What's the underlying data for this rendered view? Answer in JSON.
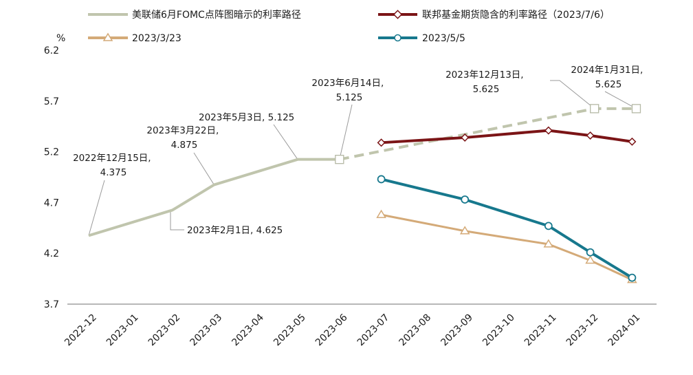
{
  "chart_data": {
    "type": "line",
    "ylabel": "%",
    "ylim": [
      3.7,
      6.2
    ],
    "yticks": [
      "6.2",
      "5.7",
      "5.2",
      "4.7",
      "4.2",
      "3.7"
    ],
    "categories": [
      "2022-12",
      "2023-01",
      "2023-02",
      "2023-03",
      "2023-04",
      "2023-05",
      "2023-06",
      "2023-07",
      "2023-08",
      "2023-09",
      "2023-10",
      "2023-11",
      "2023-12",
      "2024-01"
    ],
    "legend_position": "top",
    "series": [
      {
        "name": "美联储6月FOMC点阵图暗示的利率路径",
        "color": "#c0c5ad",
        "style": "solid",
        "points": [
          [
            0,
            4.375
          ],
          [
            2,
            4.625
          ],
          [
            3,
            4.875
          ],
          [
            5,
            5.125
          ],
          [
            6,
            5.125
          ]
        ]
      },
      {
        "name": "美联储6月FOMC点阵图暗示的利率路径",
        "color": "#c0c5ad",
        "style": "dashed",
        "marker": "square",
        "points": [
          [
            6,
            5.125
          ],
          [
            12.1,
            5.625
          ],
          [
            13.1,
            5.625
          ]
        ]
      },
      {
        "name": "联邦基金期货隐含的利率路径（2023/7/6）",
        "color": "#7b1416",
        "style": "solid",
        "marker": "diamond",
        "points": [
          [
            7,
            5.29
          ],
          [
            9,
            5.34
          ],
          [
            11,
            5.41
          ],
          [
            12,
            5.36
          ],
          [
            13,
            5.3
          ]
        ]
      },
      {
        "name": "2023/3/23",
        "color": "#d4aa78",
        "style": "solid",
        "marker": "triangle",
        "points": [
          [
            7,
            4.58
          ],
          [
            9,
            4.42
          ],
          [
            11,
            4.29
          ],
          [
            12,
            4.13
          ],
          [
            13,
            3.94
          ]
        ]
      },
      {
        "name": "2023/5/5",
        "color": "#17788d",
        "style": "solid",
        "marker": "circle",
        "points": [
          [
            7,
            4.93
          ],
          [
            9,
            4.73
          ],
          [
            11,
            4.47
          ],
          [
            12,
            4.21
          ],
          [
            13,
            3.96
          ]
        ]
      }
    ],
    "annotations": [
      {
        "line1": "2022年12月15日,",
        "line2": "4.375"
      },
      {
        "line1": "2023年2月1日, 4.625",
        "line2": ""
      },
      {
        "line1": "2023年3月22日,",
        "line2": "4.875"
      },
      {
        "line1": "2023年5月3日, 5.125",
        "line2": ""
      },
      {
        "line1": "2023年6月14日,",
        "line2": "5.125"
      },
      {
        "line1": "2023年12月13日,",
        "line2": "5.625"
      },
      {
        "line1": "2024年1月31日,",
        "line2": "5.625"
      }
    ]
  },
  "legend": [
    {
      "label": "美联储6月FOMC点阵图暗示的利率路径",
      "color": "#c0c5ad",
      "marker": "none"
    },
    {
      "label": "联邦基金期货隐含的利率路径（2023/7/6）",
      "color": "#7b1416",
      "marker": "diamond"
    },
    {
      "label": "2023/3/23",
      "color": "#d4aa78",
      "marker": "triangle"
    },
    {
      "label": "2023/5/5",
      "color": "#17788d",
      "marker": "circle"
    }
  ]
}
